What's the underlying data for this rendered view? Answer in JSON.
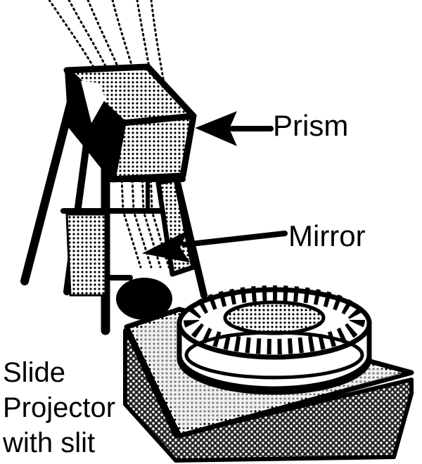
{
  "labels": {
    "prism": "Prism",
    "mirror": "Mirror",
    "projector_line1": "Slide",
    "projector_line2": "Projector",
    "projector_line3": "with slit"
  },
  "colors": {
    "ink": "#000000",
    "paper": "#ffffff",
    "light_gray": "#d6d6d6",
    "mid_gray": "#9a9a9a",
    "dark_gray": "#555555"
  }
}
